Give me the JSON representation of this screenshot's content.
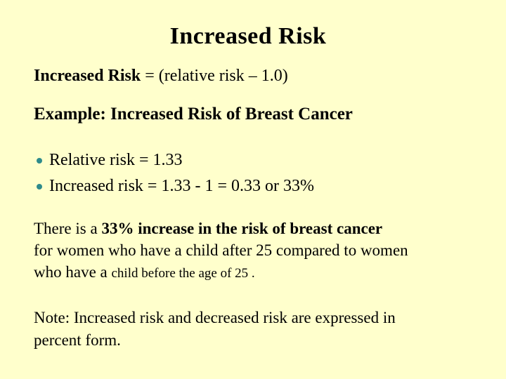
{
  "slide": {
    "title": "Increased Risk",
    "formula": {
      "bold": "Increased Risk",
      "rest": " = (relative risk – 1.0)"
    },
    "example_heading": "Example: Increased Risk of Breast Cancer",
    "bullets": [
      "Relative risk = 1.33",
      "Increased risk = 1.33 - 1 = 0.33 or 33%"
    ],
    "paragraph": {
      "line1_regular": "There is a ",
      "line1_bold": "33% increase in the risk of breast cancer",
      "line2": "for women who have a child after 25 compared to women",
      "line3_regular": "who have a ",
      "line3_small": "child before the age of 25 ."
    },
    "note": {
      "line1": "Note: Increased risk and decreased risk are expressed in",
      "line2": "percent form."
    },
    "colors": {
      "background": "#FFFFCC",
      "text": "#000000",
      "bullet": "#2E8B8B"
    }
  }
}
